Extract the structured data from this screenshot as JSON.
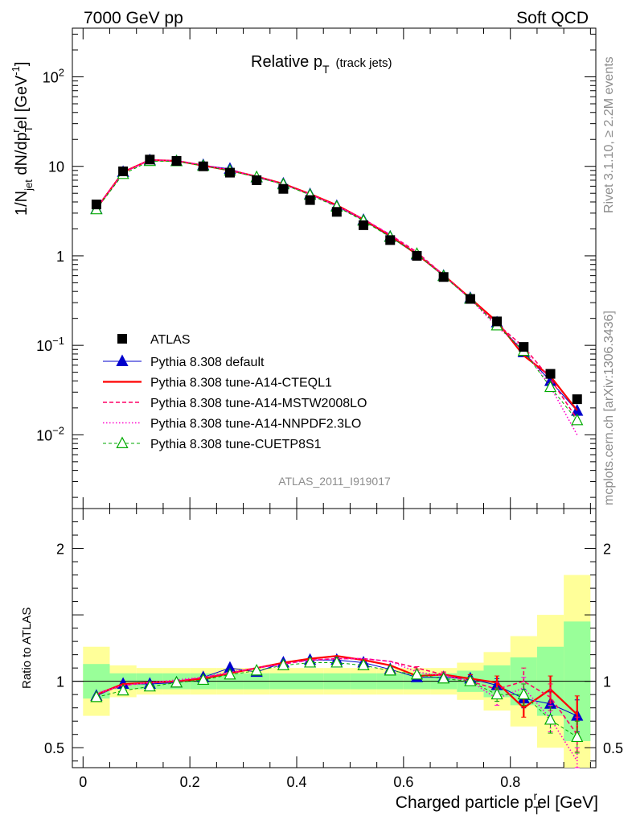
{
  "header": {
    "left": "7000 GeV pp",
    "right": "Soft QCD"
  },
  "side_labels": {
    "rivet": "Rivet 3.1.10, ≥ 2.2M events",
    "mcplots": "mcplots.cern.ch [arXiv:1306.3436]"
  },
  "chart_data": {
    "type": "line",
    "title_main": "Relative p",
    "title_sub": "T",
    "title_paren": "(track jets)",
    "analysis_id": "ATLAS_2011_I919017",
    "xlim": [
      -0.02,
      0.96
    ],
    "x_ticks": [
      "0",
      "0.2",
      "0.4",
      "0.6",
      "0.8"
    ],
    "xlabel": {
      "main": "Charged particle p",
      "sub": "T",
      "sup": "r",
      "rest": "el [GeV]"
    },
    "top": {
      "ylabel": {
        "a": "1/N",
        "a_sub": "jet",
        "b": " dN/dp",
        "b_sub": "T",
        "b_sup": "r",
        "c": "el [GeV",
        "c_sup": "-1",
        "d": "]"
      },
      "yscale": "log",
      "ylim": [
        0.0015,
        350
      ],
      "y_ticks": [
        {
          "value": 100,
          "base": "10",
          "exp": "2"
        },
        {
          "value": 10,
          "base": "10",
          "exp": ""
        },
        {
          "value": 1,
          "base": "1",
          "exp": ""
        },
        {
          "value": 0.1,
          "base": "10",
          "exp": "−1"
        },
        {
          "value": 0.01,
          "base": "10",
          "exp": "−2"
        }
      ]
    },
    "ratio": {
      "ylabel": "Ratio to ATLAS",
      "ylim": [
        0.35,
        2.3
      ],
      "y_ticks": [
        "0.5",
        "1",
        "2"
      ],
      "y_tick_values": [
        0.5,
        1,
        2
      ]
    },
    "bins": [
      0.025,
      0.075,
      0.125,
      0.175,
      0.225,
      0.275,
      0.325,
      0.375,
      0.425,
      0.475,
      0.525,
      0.575,
      0.625,
      0.675,
      0.725,
      0.775,
      0.825,
      0.875,
      0.925
    ],
    "atlas": [
      3.75,
      8.8,
      11.9,
      11.5,
      10.0,
      8.5,
      7.0,
      5.6,
      4.2,
      3.1,
      2.2,
      1.5,
      1.0,
      0.58,
      0.33,
      0.185,
      0.096,
      0.048,
      0.025
    ],
    "band_inner": [
      0.13,
      0.06,
      0.06,
      0.06,
      0.06,
      0.06,
      0.06,
      0.06,
      0.06,
      0.06,
      0.06,
      0.06,
      0.06,
      0.06,
      0.08,
      0.12,
      0.18,
      0.26,
      0.45
    ],
    "band_outer": [
      0.26,
      0.12,
      0.1,
      0.1,
      0.1,
      0.1,
      0.1,
      0.1,
      0.1,
      0.1,
      0.1,
      0.1,
      0.1,
      0.1,
      0.14,
      0.22,
      0.34,
      0.5,
      0.8
    ],
    "series": [
      {
        "name": "Pythia 8.308 default",
        "color": "#0000cc",
        "dash": "",
        "width": 1,
        "marker": "triangle-filled",
        "ratio": [
          0.89,
          0.98,
          0.98,
          0.99,
          1.03,
          1.1,
          1.07,
          1.14,
          1.16,
          1.16,
          1.14,
          1.09,
          1.03,
          1.03,
          1.02,
          0.97,
          0.87,
          0.83,
          0.74
        ],
        "err": [
          0,
          0,
          0,
          0,
          0,
          0,
          0,
          0,
          0,
          0,
          0,
          0,
          0.01,
          0.02,
          0.03,
          0.05,
          0.07,
          0.09,
          0.12
        ]
      },
      {
        "name": "Pythia 8.308 tune-A14-CTEQL1",
        "color": "#ff0000",
        "dash": "",
        "width": 2.2,
        "marker": "none",
        "ratio": [
          0.9,
          0.98,
          0.99,
          1.0,
          1.02,
          1.06,
          1.1,
          1.14,
          1.17,
          1.19,
          1.16,
          1.12,
          1.04,
          1.05,
          1.02,
          0.99,
          0.8,
          0.94,
          0.75
        ],
        "err": [
          0,
          0,
          0,
          0,
          0,
          0,
          0,
          0,
          0,
          0,
          0,
          0,
          0.01,
          0.02,
          0.03,
          0.05,
          0.07,
          0.1,
          0.14
        ]
      },
      {
        "name": "Pythia 8.308 tune-A14-MSTW2008LO",
        "color": "#ff0066",
        "dash": "5,3",
        "width": 1.6,
        "marker": "none",
        "ratio": [
          0.9,
          0.97,
          0.99,
          1.0,
          1.03,
          1.06,
          1.1,
          1.13,
          1.16,
          1.17,
          1.17,
          1.15,
          1.1,
          1.05,
          1.0,
          0.94,
          1.0,
          0.88,
          0.6
        ],
        "err": [
          0,
          0,
          0,
          0,
          0,
          0,
          0,
          0,
          0,
          0,
          0,
          0,
          0.01,
          0.02,
          0.03,
          0.05,
          0.1,
          0.1,
          0.13
        ]
      },
      {
        "name": "Pythia 8.308 tune-A14-NNPDF2.3LO",
        "color": "#ff00cc",
        "dash": "1.5,2.5",
        "width": 1.6,
        "marker": "none",
        "ratio": [
          0.91,
          0.97,
          0.99,
          1.01,
          1.03,
          1.07,
          1.1,
          1.13,
          1.16,
          1.17,
          1.17,
          1.15,
          1.07,
          1.04,
          1.0,
          0.87,
          0.95,
          0.72,
          0.4
        ],
        "err": [
          0,
          0,
          0,
          0,
          0,
          0,
          0,
          0,
          0,
          0,
          0,
          0,
          0.01,
          0.02,
          0.03,
          0.05,
          0.08,
          0.1,
          0.1
        ]
      },
      {
        "name": "Pythia 8.308 tune-CUETP8S1",
        "color": "#00aa00",
        "dash": "4,3",
        "width": 1,
        "marker": "triangle-open",
        "ratio": [
          0.88,
          0.93,
          0.96,
          0.99,
          1.01,
          1.05,
          1.08,
          1.12,
          1.14,
          1.14,
          1.12,
          1.08,
          1.05,
          1.02,
          1.0,
          0.9,
          0.9,
          0.71,
          0.58
        ],
        "err": [
          0,
          0,
          0,
          0,
          0,
          0,
          0,
          0,
          0,
          0,
          0,
          0,
          0.01,
          0.02,
          0.03,
          0.05,
          0.08,
          0.1,
          0.12
        ]
      }
    ],
    "legend": {
      "placement": "lower-left",
      "data_label": "ATLAS"
    }
  }
}
